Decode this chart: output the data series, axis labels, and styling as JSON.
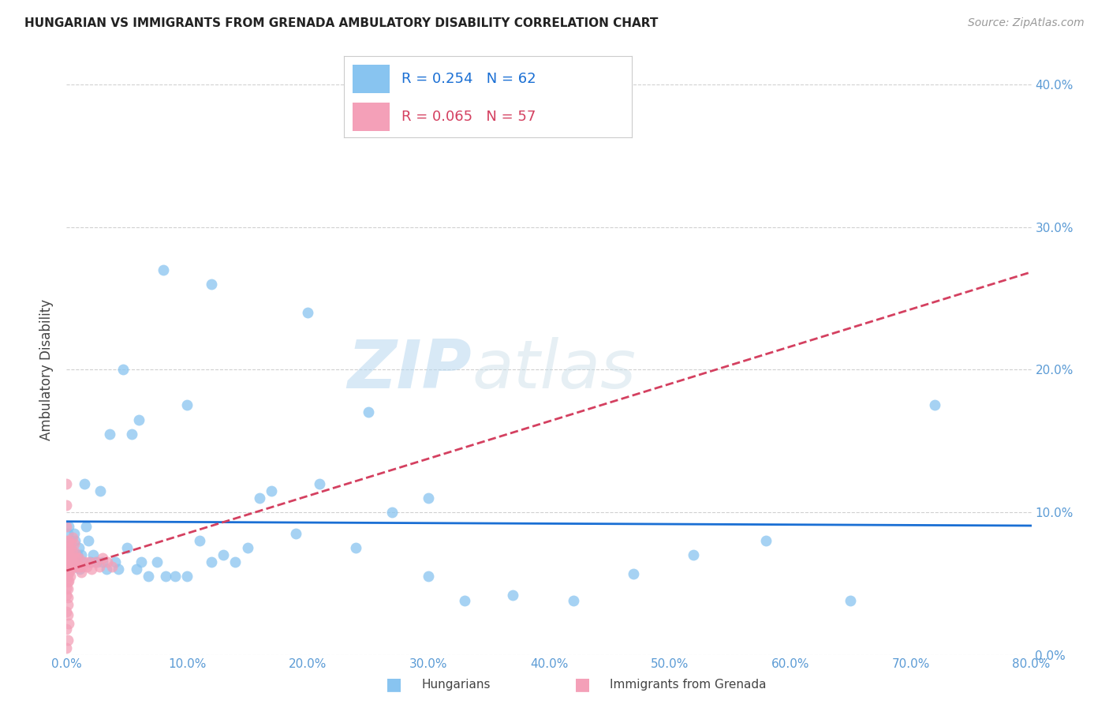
{
  "title": "HUNGARIAN VS IMMIGRANTS FROM GRENADA AMBULATORY DISABILITY CORRELATION CHART",
  "source": "Source: ZipAtlas.com",
  "ylabel": "Ambulatory Disability",
  "R1": 0.254,
  "N1": 62,
  "R2": 0.065,
  "N2": 57,
  "blue_color": "#88c4f0",
  "pink_color": "#f4a0b8",
  "trend_blue": "#1a6fd4",
  "trend_pink": "#d44060",
  "xlim": [
    0.0,
    0.8
  ],
  "ylim": [
    0.0,
    0.4
  ],
  "blue_x": [
    0.001,
    0.002,
    0.003,
    0.004,
    0.005,
    0.006,
    0.007,
    0.008,
    0.009,
    0.01,
    0.011,
    0.012,
    0.013,
    0.015,
    0.016,
    0.018,
    0.02,
    0.022,
    0.025,
    0.028,
    0.03,
    0.033,
    0.036,
    0.04,
    0.043,
    0.047,
    0.05,
    0.054,
    0.058,
    0.062,
    0.068,
    0.075,
    0.082,
    0.09,
    0.1,
    0.11,
    0.12,
    0.13,
    0.14,
    0.15,
    0.17,
    0.19,
    0.21,
    0.24,
    0.27,
    0.3,
    0.33,
    0.37,
    0.42,
    0.47,
    0.52,
    0.58,
    0.65,
    0.72,
    0.06,
    0.08,
    0.1,
    0.12,
    0.16,
    0.2,
    0.25,
    0.3
  ],
  "blue_y": [
    0.085,
    0.09,
    0.075,
    0.08,
    0.07,
    0.085,
    0.08,
    0.065,
    0.07,
    0.075,
    0.06,
    0.07,
    0.065,
    0.12,
    0.09,
    0.08,
    0.065,
    0.07,
    0.065,
    0.115,
    0.065,
    0.06,
    0.155,
    0.065,
    0.06,
    0.2,
    0.075,
    0.155,
    0.06,
    0.065,
    0.055,
    0.065,
    0.055,
    0.055,
    0.055,
    0.08,
    0.065,
    0.07,
    0.065,
    0.075,
    0.115,
    0.085,
    0.12,
    0.075,
    0.1,
    0.055,
    0.038,
    0.042,
    0.038,
    0.057,
    0.07,
    0.08,
    0.038,
    0.175,
    0.165,
    0.27,
    0.175,
    0.26,
    0.11,
    0.24,
    0.17,
    0.11
  ],
  "pink_x": [
    0.0,
    0.0,
    0.0,
    0.0,
    0.0,
    0.0,
    0.0,
    0.0,
    0.0,
    0.0,
    0.001,
    0.001,
    0.001,
    0.001,
    0.001,
    0.001,
    0.001,
    0.001,
    0.002,
    0.002,
    0.002,
    0.002,
    0.002,
    0.003,
    0.003,
    0.003,
    0.003,
    0.004,
    0.004,
    0.004,
    0.005,
    0.005,
    0.006,
    0.006,
    0.007,
    0.007,
    0.008,
    0.009,
    0.01,
    0.011,
    0.012,
    0.013,
    0.015,
    0.017,
    0.019,
    0.021,
    0.024,
    0.027,
    0.03,
    0.034,
    0.038,
    0.0,
    0.001,
    0.002,
    0.0,
    0.001,
    0.0
  ],
  "pink_y": [
    0.12,
    0.105,
    0.09,
    0.08,
    0.072,
    0.065,
    0.058,
    0.052,
    0.047,
    0.042,
    0.075,
    0.068,
    0.062,
    0.056,
    0.051,
    0.046,
    0.04,
    0.035,
    0.08,
    0.072,
    0.065,
    0.058,
    0.052,
    0.075,
    0.068,
    0.062,
    0.055,
    0.078,
    0.068,
    0.06,
    0.082,
    0.072,
    0.078,
    0.068,
    0.072,
    0.062,
    0.068,
    0.062,
    0.068,
    0.062,
    0.058,
    0.062,
    0.065,
    0.062,
    0.065,
    0.06,
    0.065,
    0.062,
    0.068,
    0.065,
    0.062,
    0.018,
    0.028,
    0.022,
    0.005,
    0.01,
    0.03
  ],
  "legend_label1": "Hungarians",
  "legend_label2": "Immigrants from Grenada"
}
